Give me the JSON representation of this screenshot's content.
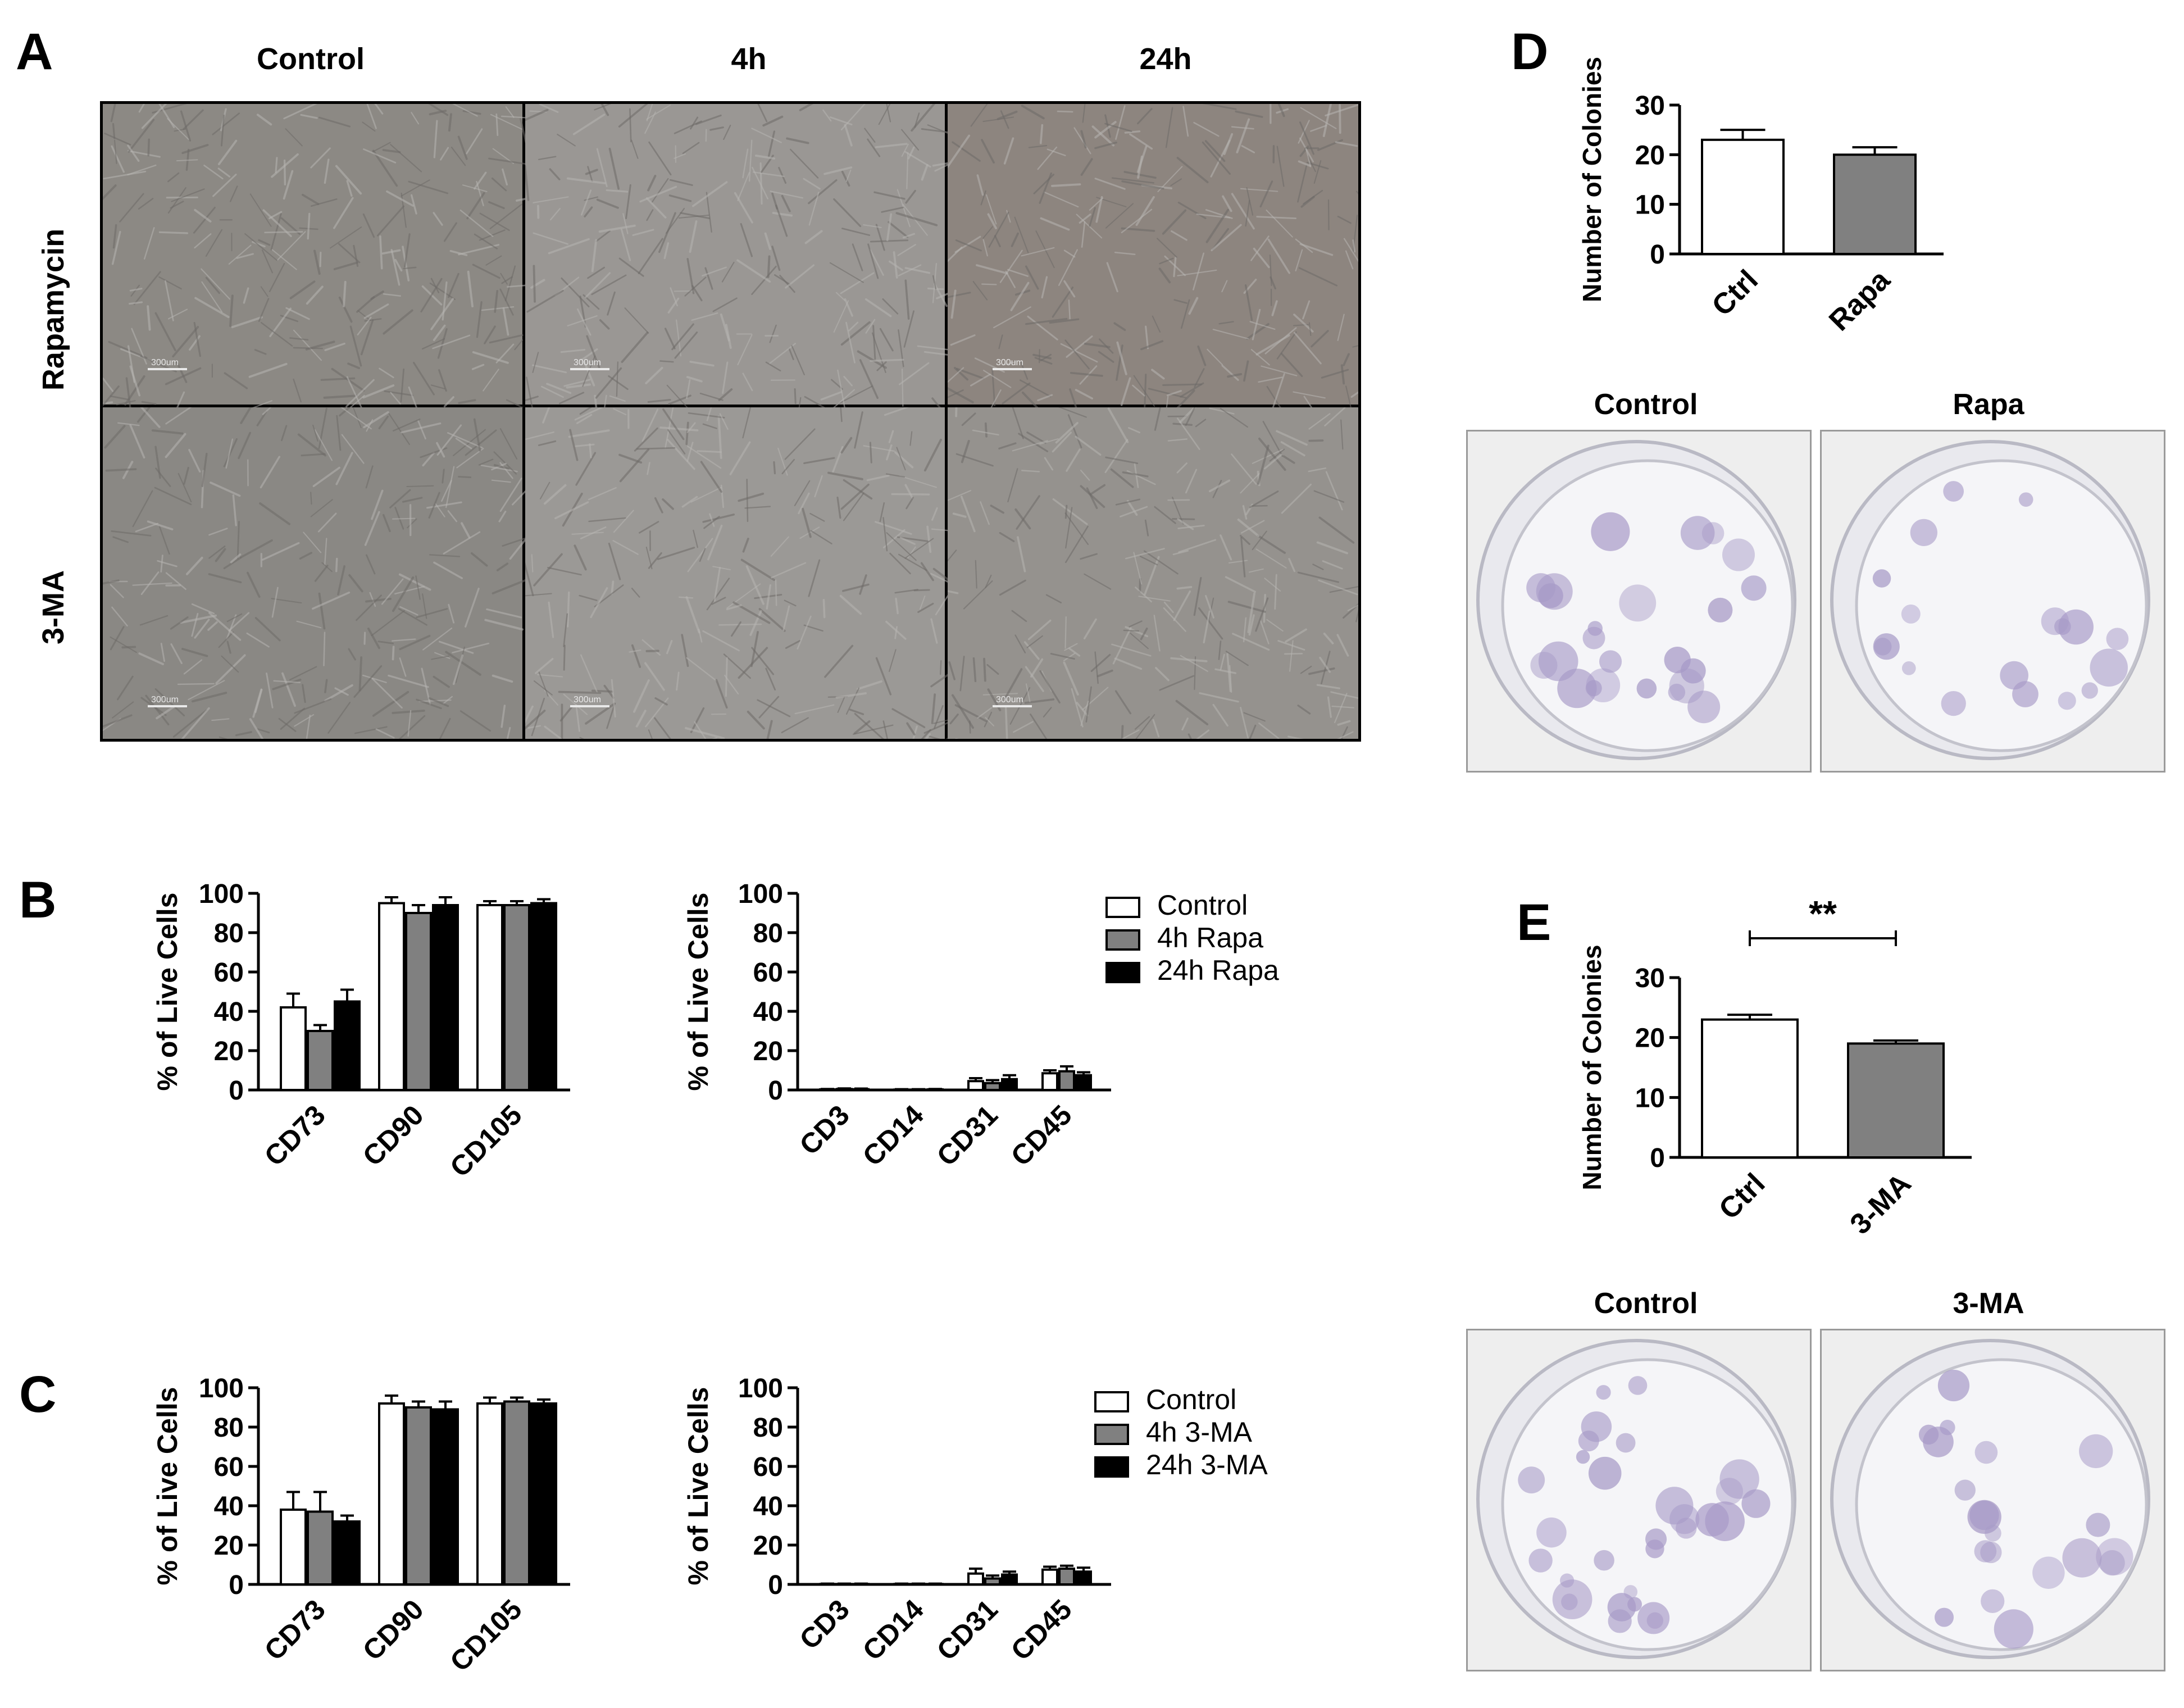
{
  "panels": {
    "A": {
      "letter": "A",
      "columns": [
        "Control",
        "4h",
        "24h"
      ],
      "rows": [
        "Rapamycin",
        "3-MA"
      ],
      "scalebar": "300um"
    },
    "B": {
      "letter": "B"
    },
    "C": {
      "letter": "C"
    },
    "D": {
      "letter": "D",
      "plates": [
        "Control",
        "Rapa"
      ]
    },
    "E": {
      "letter": "E",
      "plates": [
        "Control",
        "3-MA"
      ]
    }
  },
  "chart_data": [
    {
      "id": "B-left",
      "type": "bar",
      "ylabel": "% of Live Cells",
      "ylim": [
        0,
        100
      ],
      "yticks": [
        0,
        20,
        40,
        60,
        80,
        100
      ],
      "categories": [
        "CD73",
        "CD90",
        "CD105"
      ],
      "series": [
        {
          "name": "Control",
          "values": [
            42,
            95,
            94
          ],
          "errors": [
            7,
            3,
            2
          ],
          "color": "#ffffff"
        },
        {
          "name": "4h Rapa",
          "values": [
            30,
            90,
            94
          ],
          "errors": [
            3,
            4,
            2
          ],
          "color": "#808080"
        },
        {
          "name": "24h Rapa",
          "values": [
            45,
            94,
            95
          ],
          "errors": [
            6,
            4,
            2
          ],
          "color": "#000000"
        }
      ]
    },
    {
      "id": "B-right",
      "type": "bar",
      "ylabel": "% of Live Cells",
      "ylim": [
        0,
        100
      ],
      "yticks": [
        0,
        20,
        40,
        60,
        80,
        100
      ],
      "categories": [
        "CD3",
        "CD14",
        "CD31",
        "CD45"
      ],
      "legend": {
        "entries": [
          "Control",
          "4h Rapa",
          "24h Rapa"
        ],
        "position": "right"
      },
      "series": [
        {
          "name": "Control",
          "values": [
            0.3,
            0.2,
            4.5,
            8.5
          ],
          "errors": [
            0.2,
            0.2,
            1.5,
            1.5
          ],
          "color": "#ffffff"
        },
        {
          "name": "4h Rapa",
          "values": [
            0.5,
            0.2,
            3.5,
            9.5
          ],
          "errors": [
            0.3,
            0.2,
            1.5,
            2.5
          ],
          "color": "#808080"
        },
        {
          "name": "24h Rapa",
          "values": [
            0.4,
            0.3,
            5.5,
            7.5
          ],
          "errors": [
            0.3,
            0.2,
            2.0,
            1.5
          ],
          "color": "#000000"
        }
      ]
    },
    {
      "id": "C-left",
      "type": "bar",
      "ylabel": "% of Live Cells",
      "ylim": [
        0,
        100
      ],
      "yticks": [
        0,
        20,
        40,
        60,
        80,
        100
      ],
      "categories": [
        "CD73",
        "CD90",
        "CD105"
      ],
      "series": [
        {
          "name": "Control",
          "values": [
            38,
            92,
            92
          ],
          "errors": [
            9,
            4,
            3
          ],
          "color": "#ffffff"
        },
        {
          "name": "4h 3-MA",
          "values": [
            37,
            90,
            93
          ],
          "errors": [
            10,
            3,
            2
          ],
          "color": "#808080"
        },
        {
          "name": "24h 3-MA",
          "values": [
            32,
            89,
            92
          ],
          "errors": [
            3,
            4,
            2
          ],
          "color": "#000000"
        }
      ]
    },
    {
      "id": "C-right",
      "type": "bar",
      "ylabel": "% of Live Cells",
      "ylim": [
        0,
        100
      ],
      "yticks": [
        0,
        20,
        40,
        60,
        80,
        100
      ],
      "categories": [
        "CD3",
        "CD14",
        "CD31",
        "CD45"
      ],
      "legend": {
        "entries": [
          "Control",
          "4h 3-MA",
          "24h 3-MA"
        ],
        "position": "right"
      },
      "series": [
        {
          "name": "Control",
          "values": [
            0.2,
            0.2,
            5.5,
            7.5
          ],
          "errors": [
            0.2,
            0.2,
            2.5,
            1.5
          ],
          "color": "#ffffff"
        },
        {
          "name": "4h 3-MA",
          "values": [
            0.2,
            0.2,
            3.0,
            8.0
          ],
          "errors": [
            0.2,
            0.2,
            1.5,
            1.5
          ],
          "color": "#808080"
        },
        {
          "name": "24h 3-MA",
          "values": [
            0.2,
            0.2,
            5.0,
            6.5
          ],
          "errors": [
            0.2,
            0.2,
            1.5,
            2.0
          ],
          "color": "#000000"
        }
      ]
    },
    {
      "id": "D",
      "type": "bar",
      "ylabel": "Number of Colonies",
      "ylim": [
        0,
        30
      ],
      "yticks": [
        0,
        10,
        20,
        30
      ],
      "categories": [
        "Ctrl",
        "Rapa"
      ],
      "values": [
        23,
        20
      ],
      "errors": [
        2,
        1.5
      ],
      "colors": [
        "#ffffff",
        "#808080"
      ]
    },
    {
      "id": "E",
      "type": "bar",
      "ylabel": "Number of Colonies",
      "ylim": [
        0,
        30
      ],
      "yticks": [
        0,
        10,
        20,
        30
      ],
      "categories": [
        "Ctrl",
        "3-MA"
      ],
      "values": [
        23,
        19
      ],
      "errors": [
        0.8,
        0.5
      ],
      "colors": [
        "#ffffff",
        "#808080"
      ],
      "significance": "**"
    }
  ]
}
